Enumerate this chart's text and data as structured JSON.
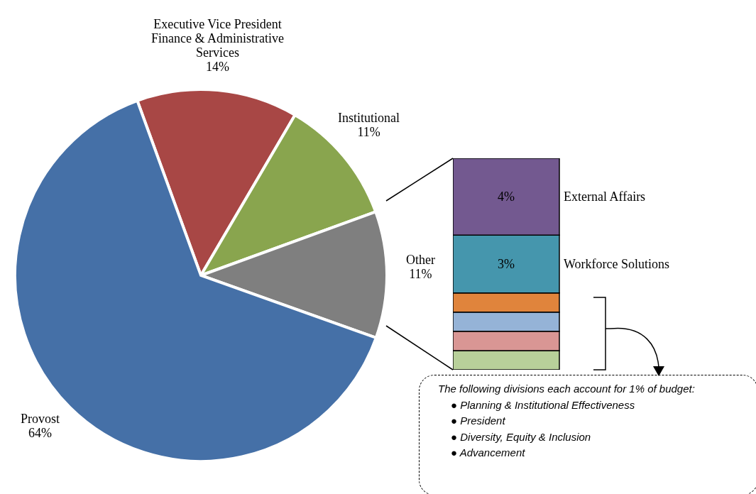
{
  "chart_data": [
    {
      "type": "pie",
      "categories": [
        "Executive Vice President Finance & Administrative Services",
        "Institutional",
        "Other",
        "Provost"
      ],
      "values": [
        14,
        11,
        11,
        64
      ],
      "value_labels": [
        "14%",
        "11%",
        "11%",
        "64%"
      ],
      "colors": [
        "#a84745",
        "#89a54e",
        "#7f7f7f",
        "#4570a7"
      ]
    },
    {
      "type": "bar",
      "stacked": true,
      "categories": [
        null
      ],
      "annotations": [
        "The following divisions each account for 1% of budget:",
        "● Planning & Institutional Effectiveness",
        "● President",
        "● Diversity, Equity & Inclusion",
        "● Advancement"
      ],
      "series": [
        {
          "color": "#b8d09a",
          "values": [
            1
          ]
        },
        {
          "color": "#d99694",
          "values": [
            1
          ]
        },
        {
          "color": "#95b3d7",
          "values": [
            1
          ]
        },
        {
          "color": "#e0843c",
          "values": [
            1
          ]
        },
        {
          "name": "Workforce Solutions",
          "color": "#4596ad",
          "values": [
            3
          ],
          "value_labels": [
            "3%"
          ]
        },
        {
          "name": "External Affairs",
          "color": "#735990",
          "values": [
            4
          ],
          "value_labels": [
            "4%"
          ]
        }
      ]
    }
  ]
}
